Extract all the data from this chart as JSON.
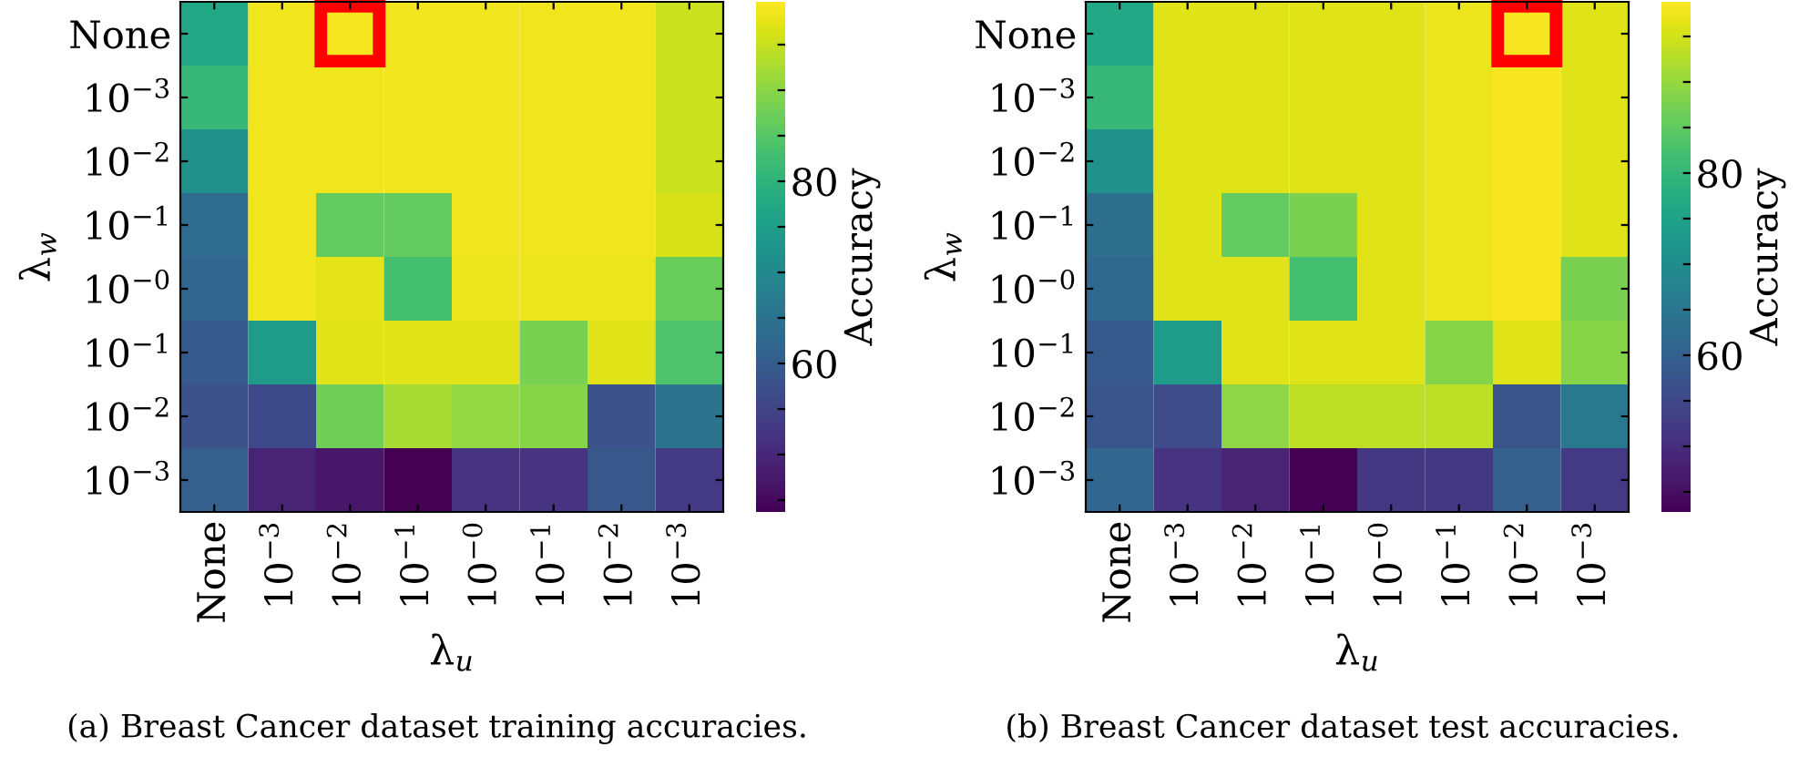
{
  "chart_data": [
    {
      "type": "heatmap",
      "xlabel": "λ$_{u}$",
      "ylabel": "λ$_{w}$",
      "clabel": "Accuracy",
      "categories": [
        "None",
        "10$^{−3}$",
        "10$^{−2}$",
        "10$^{−1}$",
        "10$^{−0}$",
        "10$^{−1}$",
        "10$^{−2}$",
        "10$^{−3}$"
      ],
      "y_categories": [
        "None",
        "10$^{−3}$",
        "10$^{−2}$",
        "10$^{−1}$",
        "10$^{−0}$",
        "10$^{−1}$",
        "10$^{−2}$",
        "10$^{−3}$"
      ],
      "cells": [
        [
          77.3,
          98.6,
          99.0,
          98.6,
          98.6,
          98.6,
          98.6,
          95.2
        ],
        [
          81.2,
          98.6,
          98.6,
          98.6,
          98.6,
          98.6,
          98.6,
          95.2
        ],
        [
          71.7,
          98.6,
          98.6,
          98.6,
          98.6,
          98.6,
          98.6,
          95.2
        ],
        [
          63.3,
          98.6,
          86.3,
          86.3,
          98.6,
          98.6,
          98.6,
          96.3
        ],
        [
          62.0,
          98.6,
          97.5,
          82.9,
          98.0,
          98.0,
          98.0,
          86.8
        ],
        [
          59.4,
          74.5,
          96.9,
          96.9,
          96.9,
          88.5,
          96.9,
          84.0
        ],
        [
          57.7,
          56.0,
          87.4,
          92.4,
          90.7,
          89.6,
          57.7,
          65.0
        ],
        [
          60.5,
          49.3,
          47.1,
          43.7,
          52.1,
          52.1,
          58.8,
          53.2
        ]
      ],
      "clim": [
        43.7,
        99.7
      ],
      "cticks": [
        {
          "value": 45,
          "label": null
        },
        {
          "value": 50,
          "label": null
        },
        {
          "value": 55,
          "label": null
        },
        60,
        {
          "value": 65,
          "label": null
        },
        {
          "value": 70,
          "label": null
        },
        {
          "value": 75,
          "label": null
        },
        80,
        {
          "value": 85,
          "label": null
        },
        {
          "value": 90,
          "label": null
        },
        {
          "value": 95,
          "label": null
        }
      ],
      "annotations": [
        "(a) Breast Cancer dataset training accuracies."
      ]
    },
    {
      "type": "heatmap",
      "xlabel": "λ$_{u}$",
      "ylabel": "λ$_{w}$",
      "clabel": "Accuracy",
      "categories": [
        "None",
        "10$^{−3}$",
        "10$^{−2}$",
        "10$^{−1}$",
        "10$^{−0}$",
        "10$^{−1}$",
        "10$^{−2}$",
        "10$^{−3}$"
      ],
      "y_categories": [
        "None",
        "10$^{−3}$",
        "10$^{−2}$",
        "10$^{−1}$",
        "10$^{−0}$",
        "10$^{−1}$",
        "10$^{−2}$",
        "10$^{−3}$"
      ],
      "cells": [
        [
          76.4,
          96.0,
          96.0,
          96.0,
          96.0,
          97.1,
          98.2,
          96.0
        ],
        [
          80.3,
          96.0,
          96.0,
          96.0,
          96.0,
          97.1,
          98.2,
          96.0
        ],
        [
          70.8,
          96.0,
          96.0,
          96.0,
          96.0,
          97.1,
          98.2,
          96.0
        ],
        [
          63.0,
          96.0,
          85.4,
          87.6,
          96.0,
          97.1,
          98.2,
          96.0
        ],
        [
          61.8,
          96.0,
          96.0,
          82.0,
          96.0,
          97.1,
          98.2,
          87.6
        ],
        [
          58.5,
          73.6,
          96.0,
          96.0,
          96.0,
          88.7,
          96.0,
          88.7
        ],
        [
          57.4,
          55.7,
          89.3,
          93.2,
          93.2,
          93.2,
          57.4,
          65.2
        ],
        [
          61.3,
          51.2,
          48.4,
          42.8,
          51.8,
          51.8,
          59.6,
          52.3
        ]
      ],
      "clim": [
        42.8,
        98.8
      ],
      "cticks": [
        {
          "value": 45,
          "label": null
        },
        {
          "value": 50,
          "label": null
        },
        {
          "value": 55,
          "label": null
        },
        60,
        {
          "value": 65,
          "label": null
        },
        {
          "value": 70,
          "label": null
        },
        {
          "value": 75,
          "label": null
        },
        80,
        {
          "value": 85,
          "label": null
        },
        {
          "value": 90,
          "label": null
        },
        {
          "value": 95,
          "label": null
        }
      ],
      "annotations": [
        "(b) Breast Cancer dataset test accuracies."
      ]
    }
  ]
}
